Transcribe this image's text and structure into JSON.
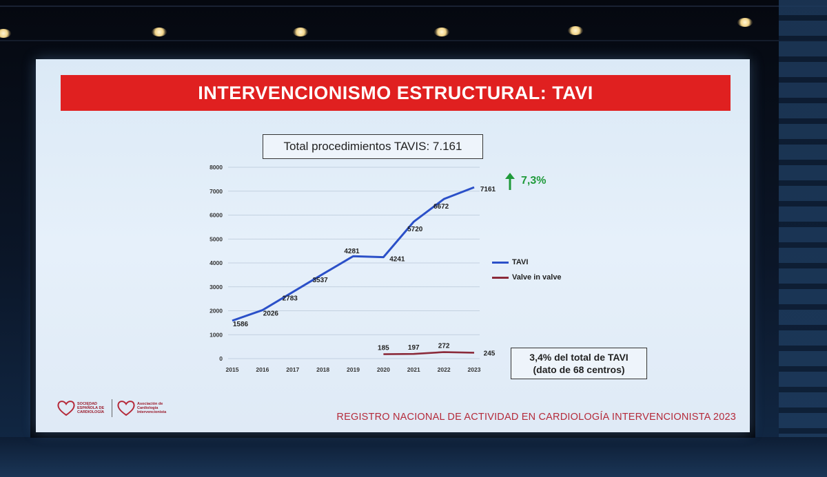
{
  "slide": {
    "title": "INTERVENCIONISMO ESTRUCTURAL: TAVI",
    "total_box": "Total procedimientos TAVIS: 7.161",
    "growth": "7,3%",
    "note_line1": "3,4% del total de TAVI",
    "note_line2": "(dato de 68 centros)",
    "footer": "REGISTRO NACIONAL DE ACTIVIDAD EN CARDIOLOGÍA INTERVENCIONISTA 2023",
    "logo1": "SOCIEDAD ESPAÑOLA DE CARDIOLOGÍA",
    "logo2": "Asociación de Cardiología Intervencionista"
  },
  "colors": {
    "banner": "#e02020",
    "tavi": "#2b50c8",
    "valve_in_valve": "#8b2a3a",
    "growth": "#1f9a3a"
  },
  "chart_data": {
    "type": "line",
    "x": [
      "2015",
      "2016",
      "2017",
      "2018",
      "2019",
      "2020",
      "2021",
      "2022",
      "2023"
    ],
    "yticks": [
      "0",
      "1000",
      "2000",
      "3000",
      "4000",
      "5000",
      "6000",
      "7000",
      "8000"
    ],
    "ylim": [
      0,
      8000
    ],
    "grid": true,
    "legend": "right",
    "series": [
      {
        "name": "TAVI",
        "x": [
          "2015",
          "2016",
          "2017",
          "2018",
          "2019",
          "2020",
          "2021",
          "2022",
          "2023"
        ],
        "values": [
          1586,
          2026,
          2783,
          3537,
          4281,
          4241,
          5720,
          6672,
          7161
        ],
        "labels": [
          "1586",
          "2026",
          "2783",
          "3537",
          "4281",
          "4241",
          "5720",
          "6672",
          "7161"
        ]
      },
      {
        "name": "Valve in valve",
        "x": [
          "2020",
          "2021",
          "2022",
          "2023"
        ],
        "values": [
          185,
          197,
          272,
          245
        ],
        "labels": [
          "185",
          "197",
          "272",
          "245"
        ]
      }
    ]
  }
}
